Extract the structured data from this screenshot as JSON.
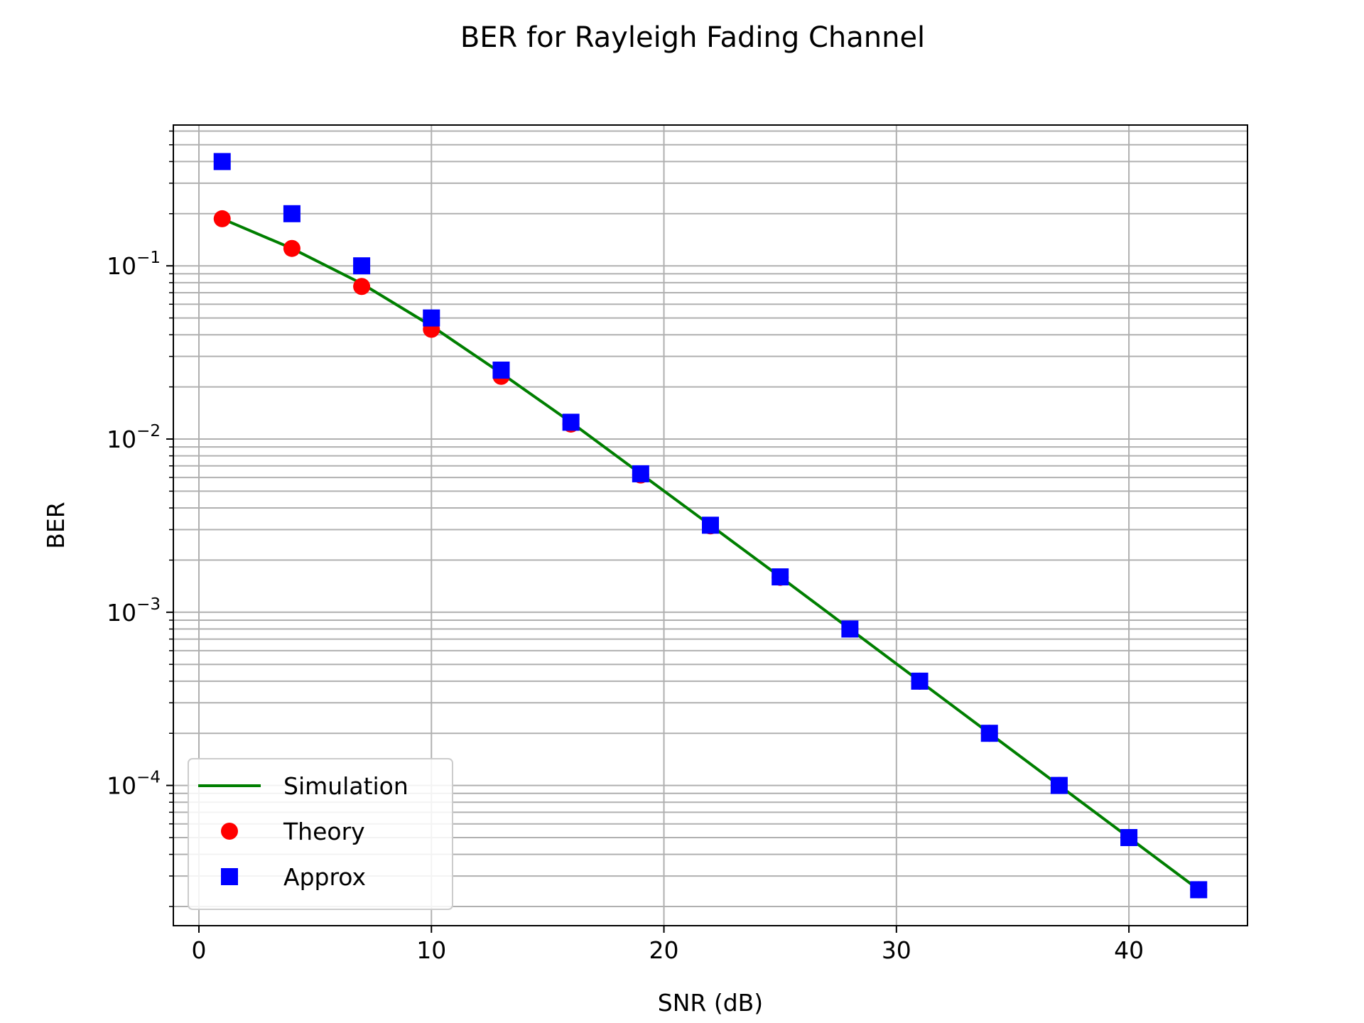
{
  "chart_data": {
    "type": "line",
    "title": "BER for Rayleigh Fading Channel",
    "xlabel": "SNR (dB)",
    "ylabel": "BER",
    "xlim": [
      -1.1,
      45.1
    ],
    "ylim": [
      1.55e-05,
      0.65
    ],
    "yscale": "log",
    "grid": true,
    "grid_minor_y": true,
    "legend_position": "lower-left",
    "x_ticks": [
      0,
      10,
      20,
      30,
      40
    ],
    "x_tick_labels": [
      "0",
      "10",
      "20",
      "30",
      "40"
    ],
    "y_ticks": [
      0.0001,
      0.001,
      0.01,
      0.1
    ],
    "y_tick_base": "10",
    "y_tick_exponents": [
      "−4",
      "−3",
      "−2",
      "−1"
    ],
    "x": [
      1,
      4,
      7,
      10,
      13,
      16,
      19,
      22,
      25,
      28,
      31,
      34,
      37,
      40,
      43
    ],
    "series": [
      {
        "name": "Simulation",
        "kind": "line",
        "color": "#007f00",
        "values": [
          0.187,
          0.126,
          0.079,
          0.045,
          0.024,
          0.0125,
          0.0063,
          0.00318,
          0.0016,
          0.0008,
          0.0004,
          0.0002,
          0.0001,
          5e-05,
          2.5e-05
        ]
      },
      {
        "name": "Theory",
        "kind": "marker-circle",
        "color": "#ff0000",
        "values": [
          0.187,
          0.126,
          0.076,
          0.043,
          0.023,
          0.0122,
          0.0062,
          0.00315,
          0.00159,
          0.0008,
          0.0004,
          0.0002,
          0.0001,
          5e-05,
          2.5e-05
        ]
      },
      {
        "name": "Approx",
        "kind": "marker-square",
        "color": "#0000ff",
        "values": [
          0.4,
          0.2,
          0.1,
          0.05,
          0.025,
          0.0125,
          0.0063,
          0.00318,
          0.0016,
          0.0008,
          0.0004,
          0.0002,
          0.0001,
          5e-05,
          2.5e-05
        ]
      }
    ]
  }
}
